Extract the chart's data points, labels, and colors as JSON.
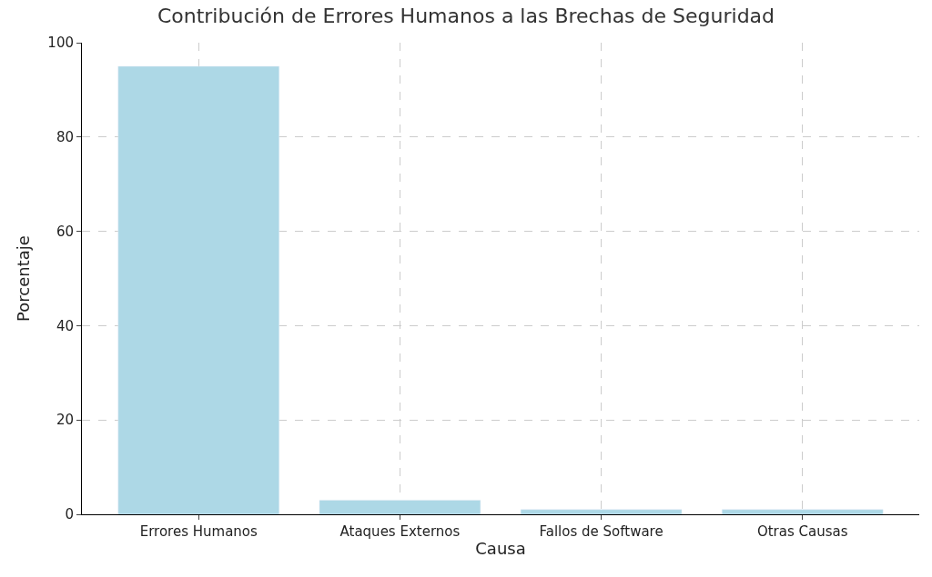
{
  "chart_data": {
    "type": "bar",
    "title": "Contribución de Errores Humanos a las Brechas de Seguridad",
    "xlabel": "Causa",
    "ylabel": "Porcentaje",
    "categories": [
      "Errores Humanos",
      "Ataques Externos",
      "Fallos de Software",
      "Otras Causas"
    ],
    "values": [
      95,
      3,
      1,
      1
    ],
    "color": "#add8e6",
    "ylim": [
      0,
      100
    ],
    "yticks": [
      0,
      20,
      40,
      60,
      80,
      100
    ],
    "grid": true
  }
}
